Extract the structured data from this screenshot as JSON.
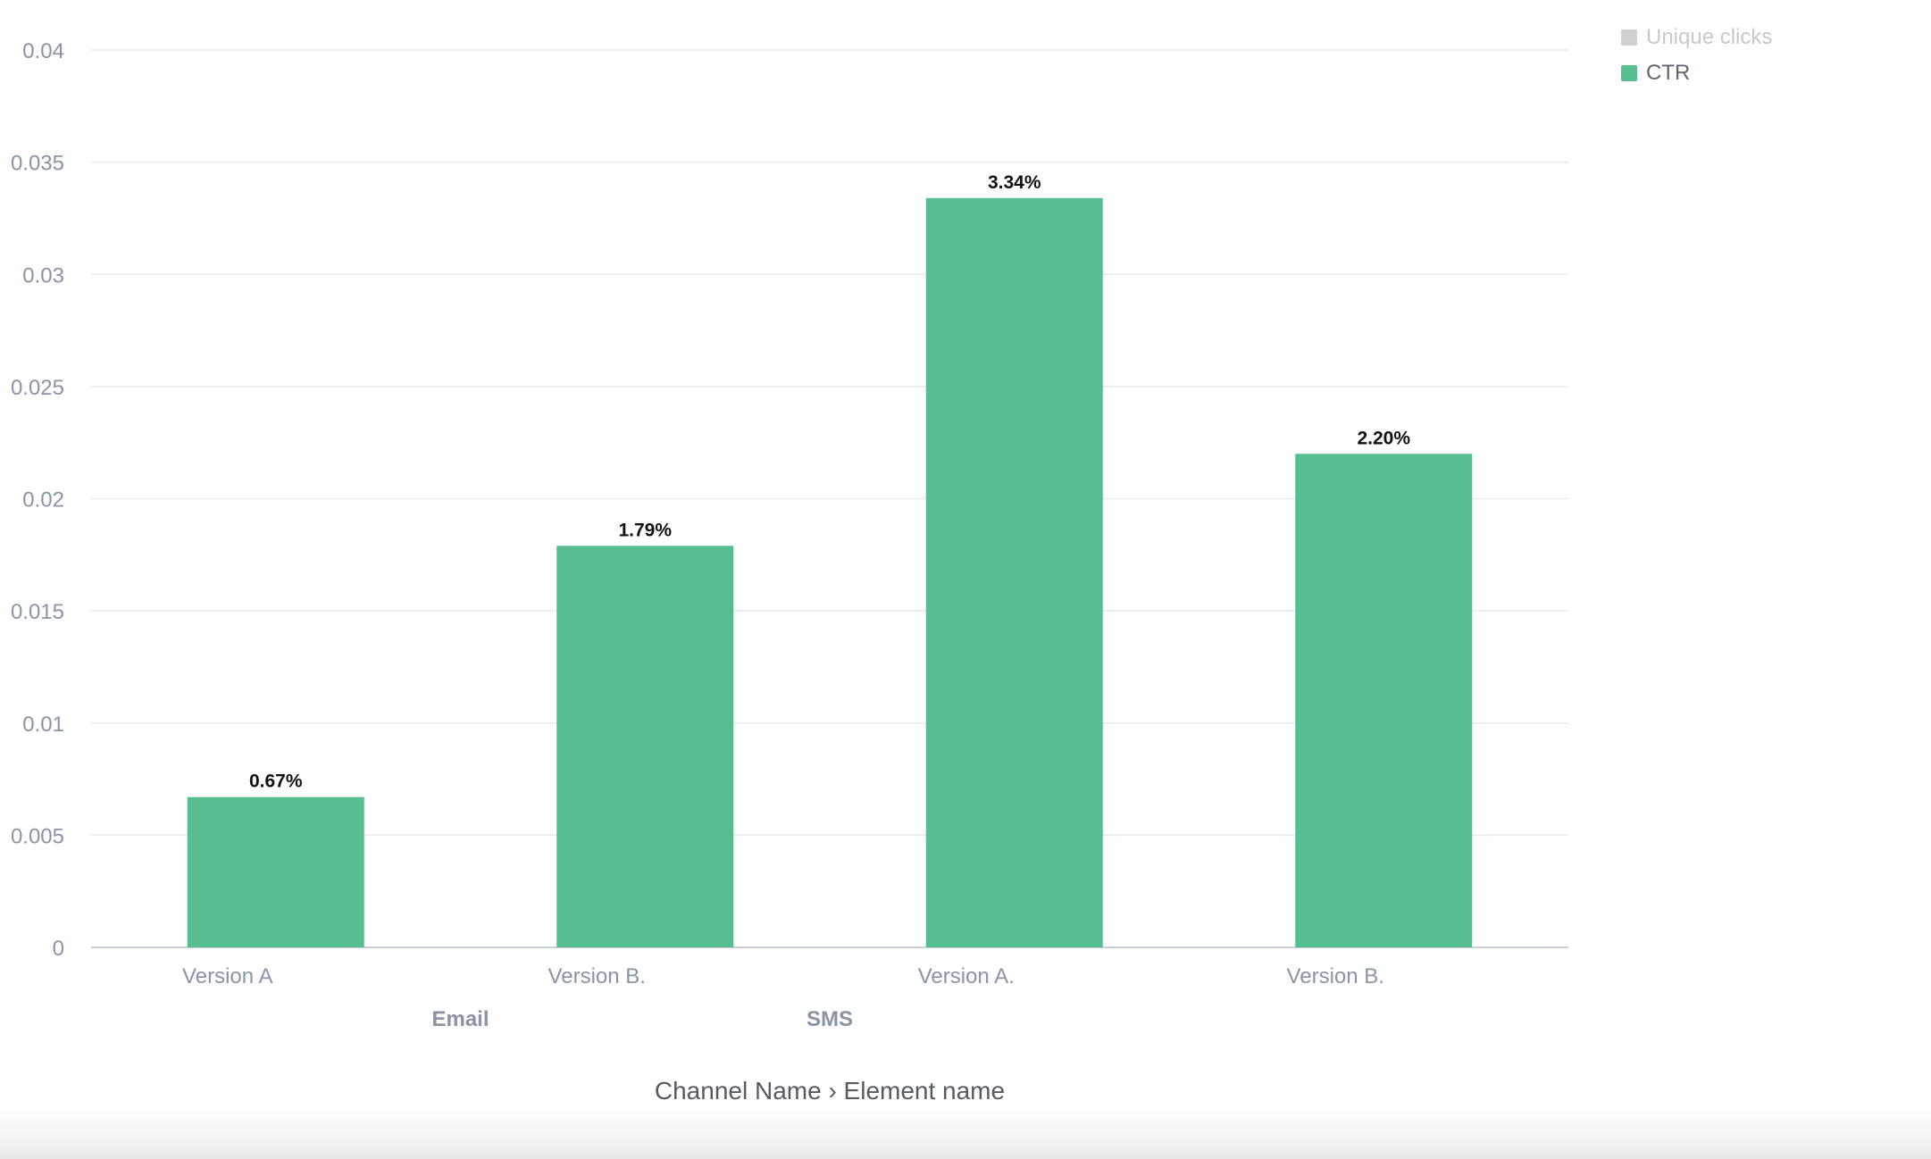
{
  "chart_data": {
    "type": "bar",
    "categories": [
      "Version A",
      "Version B.",
      "Version A.",
      "Version B."
    ],
    "groups": [
      {
        "label": "Email",
        "categories": [
          "Version A",
          "Version B."
        ]
      },
      {
        "label": "SMS",
        "categories": [
          "Version A.",
          "Version B."
        ]
      }
    ],
    "series": [
      {
        "name": "CTR",
        "values": [
          0.0067,
          0.0179,
          0.0334,
          0.022
        ],
        "color": "#57be92"
      }
    ],
    "data_labels": [
      "0.67%",
      "1.79%",
      "3.34%",
      "2.20%"
    ],
    "y_ticks": [
      "0",
      "0.005",
      "0.01",
      "0.015",
      "0.02",
      "0.025",
      "0.03",
      "0.035",
      "0.04"
    ],
    "ylim": [
      0,
      0.04
    ],
    "xlabel": "Channel Name › Element name",
    "ylabel": "",
    "grid": true,
    "legend_position": "top-right"
  },
  "legend": [
    {
      "label": "Unique clicks",
      "color": "#d0d0d0",
      "enabled": false
    },
    {
      "label": "CTR",
      "color": "#57be92",
      "enabled": true
    }
  ],
  "colors": {
    "bar": "#57be92",
    "grid": "#e6e9ee",
    "axis_text": "#8a94a6",
    "data_label": "#111111",
    "title_text": "#555b63"
  }
}
